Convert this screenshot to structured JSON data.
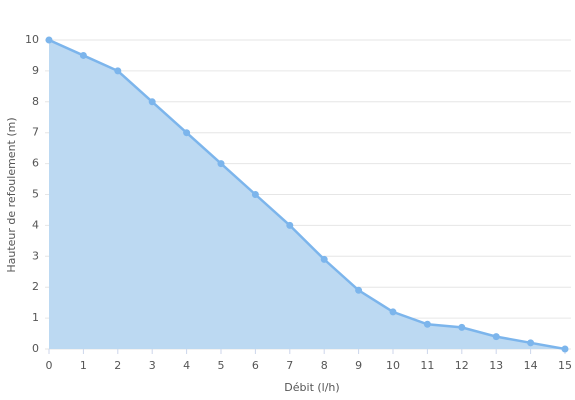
{
  "chart_data": {
    "type": "area",
    "x_label": "Débit (l/h)",
    "y_label": "Hauteur de refoulement (m)",
    "x": [
      0,
      1,
      2,
      3,
      4,
      5,
      6,
      7,
      8,
      9,
      10,
      11,
      12,
      13,
      14,
      15
    ],
    "series": [
      {
        "color": "#7cb5ec",
        "fill": "#bcd9f2",
        "values": [
          10,
          9.5,
          9,
          8,
          7,
          6,
          5,
          4,
          2.9,
          1.9,
          1.2,
          0.8,
          0.7,
          0.4,
          0.2,
          0
        ]
      }
    ],
    "xlim": [
      0,
      15
    ],
    "xticks": [
      0,
      1,
      2,
      3,
      4,
      5,
      6,
      7,
      8,
      9,
      10,
      11,
      12,
      13,
      14,
      15
    ],
    "ylim": [
      0,
      10
    ],
    "yticks": [
      0,
      1,
      2,
      3,
      4,
      5,
      6,
      7,
      8,
      9,
      10
    ],
    "grid": true
  }
}
